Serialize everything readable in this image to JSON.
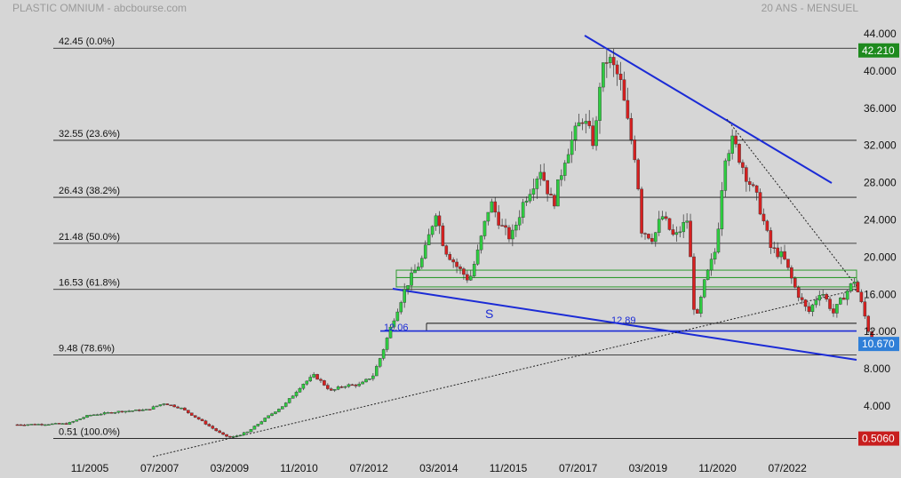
{
  "header": {
    "title": "PLASTIC OMNIUM - abcbourse.com",
    "period": "20 ANS - MENSUEL"
  },
  "chart_data": {
    "type": "candlestick",
    "y_ticks": [
      "44.000",
      "40.000",
      "36.000",
      "32.000",
      "28.000",
      "24.000",
      "20.000",
      "16.000",
      "12.000",
      "8.000",
      "4.000"
    ],
    "ylim": [
      0,
      45
    ],
    "x_ticks": [
      {
        "label": "11/2005",
        "t": 2005.83
      },
      {
        "label": "07/2007",
        "t": 2007.5
      },
      {
        "label": "03/2009",
        "t": 2009.17
      },
      {
        "label": "11/2010",
        "t": 2010.83
      },
      {
        "label": "07/2012",
        "t": 2012.5
      },
      {
        "label": "03/2014",
        "t": 2014.17
      },
      {
        "label": "11/2015",
        "t": 2015.83
      },
      {
        "label": "07/2017",
        "t": 2017.5
      },
      {
        "label": "03/2019",
        "t": 2019.17
      },
      {
        "label": "11/2020",
        "t": 2020.83
      },
      {
        "label": "07/2022",
        "t": 2022.5
      }
    ],
    "fib_levels": [
      {
        "price": 42.45,
        "label": "42.45  (0.0%)"
      },
      {
        "price": 32.55,
        "label": "32.55  (23.6%)"
      },
      {
        "price": 26.43,
        "label": "26.43  (38.2%)"
      },
      {
        "price": 21.48,
        "label": "21.48  (50.0%)"
      },
      {
        "price": 16.53,
        "label": "16.53  (61.8%)"
      },
      {
        "price": 9.48,
        "label": "9.48  (78.6%)"
      },
      {
        "price": 0.51,
        "label": "0.51  (100.0%)"
      }
    ],
    "last_price": {
      "label": "10.670",
      "value": 10.67,
      "color": "#2f7fd8"
    },
    "high_price": {
      "label": "42.210",
      "value": 42.21,
      "color": "#1e8a1e"
    },
    "low_price": {
      "label": "0.5060",
      "value": 0.506,
      "color": "#c81e1e"
    },
    "annotations": {
      "s_label": "S",
      "left_level": "12.06",
      "right_level": "12.89"
    },
    "anchors": [
      [
        2004.1,
        2.0
      ],
      [
        2005.3,
        2.1
      ],
      [
        2005.8,
        3.0
      ],
      [
        2006.5,
        3.4
      ],
      [
        2007.2,
        3.6
      ],
      [
        2007.6,
        4.3
      ],
      [
        2008.0,
        3.8
      ],
      [
        2008.5,
        2.4
      ],
      [
        2009.0,
        0.9
      ],
      [
        2009.2,
        0.6
      ],
      [
        2009.6,
        1.2
      ],
      [
        2010.0,
        2.6
      ],
      [
        2010.5,
        4.2
      ],
      [
        2010.9,
        6.3
      ],
      [
        2011.2,
        7.3
      ],
      [
        2011.6,
        5.6
      ],
      [
        2011.9,
        6.2
      ],
      [
        2012.3,
        6.3
      ],
      [
        2012.6,
        7.3
      ],
      [
        2012.8,
        9.5
      ],
      [
        2013.1,
        13.5
      ],
      [
        2013.4,
        17.0
      ],
      [
        2013.8,
        20.0
      ],
      [
        2014.1,
        25.0
      ],
      [
        2014.3,
        21.0
      ],
      [
        2014.6,
        19.0
      ],
      [
        2014.9,
        17.5
      ],
      [
        2015.1,
        20.5
      ],
      [
        2015.4,
        26.0
      ],
      [
        2015.7,
        23.0
      ],
      [
        2015.9,
        22.0
      ],
      [
        2016.2,
        26.0
      ],
      [
        2016.6,
        29.5
      ],
      [
        2016.9,
        25.5
      ],
      [
        2017.2,
        31.0
      ],
      [
        2017.6,
        35.0
      ],
      [
        2017.9,
        32.0
      ],
      [
        2018.0,
        38.5
      ],
      [
        2018.2,
        41.5
      ],
      [
        2018.5,
        39.0
      ],
      [
        2018.7,
        34.0
      ],
      [
        2018.9,
        30.0
      ],
      [
        2019.0,
        23.0
      ],
      [
        2019.3,
        22.0
      ],
      [
        2019.5,
        24.5
      ],
      [
        2019.8,
        22.0
      ],
      [
        2020.1,
        24.0
      ],
      [
        2020.2,
        19.0
      ],
      [
        2020.3,
        12.5
      ],
      [
        2020.5,
        17.0
      ],
      [
        2020.8,
        21.0
      ],
      [
        2021.0,
        31.0
      ],
      [
        2021.2,
        32.5
      ],
      [
        2021.5,
        29.0
      ],
      [
        2021.8,
        26.0
      ],
      [
        2022.1,
        21.0
      ],
      [
        2022.4,
        20.0
      ],
      [
        2022.7,
        16.5
      ],
      [
        2023.0,
        14.0
      ],
      [
        2023.3,
        16.5
      ],
      [
        2023.6,
        14.0
      ],
      [
        2023.8,
        15.5
      ],
      [
        2024.1,
        17.5
      ],
      [
        2024.3,
        14.5
      ],
      [
        2024.5,
        11.0
      ],
      [
        2024.8,
        10.67
      ]
    ]
  }
}
